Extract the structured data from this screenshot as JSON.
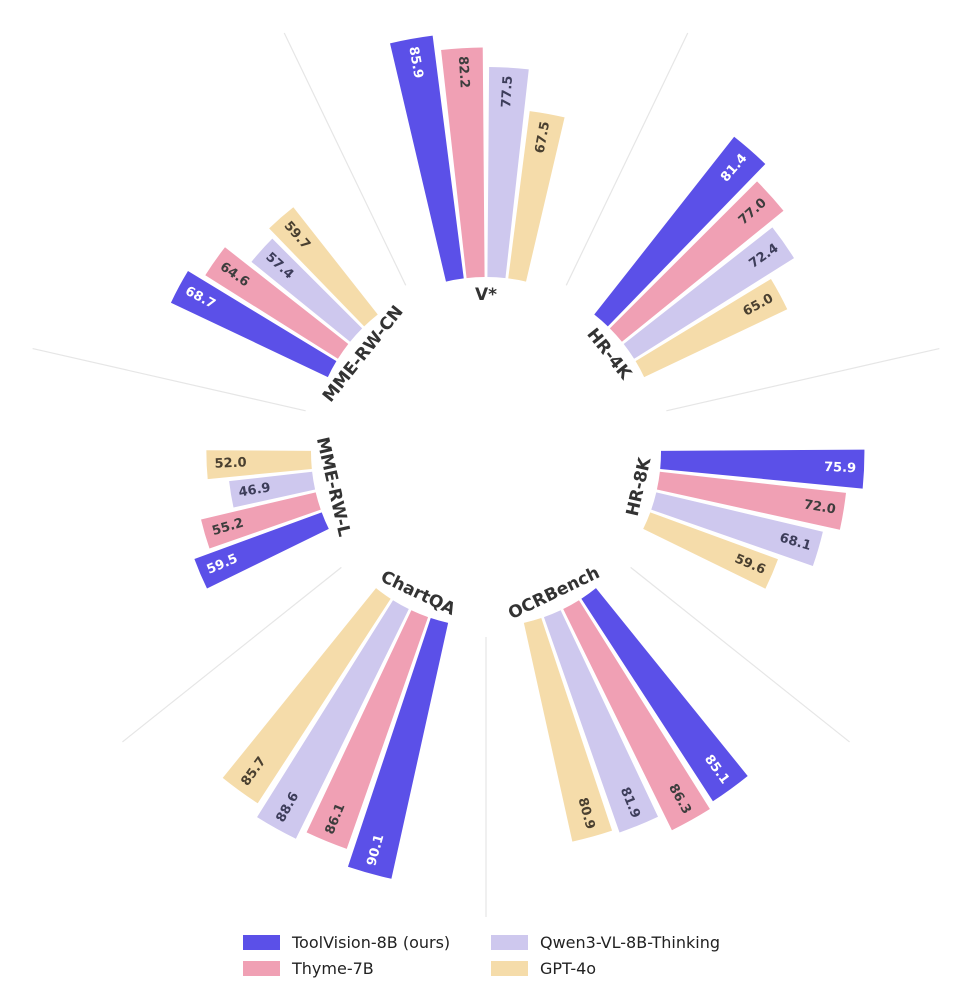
{
  "chart_data": {
    "type": "radial-bar",
    "title": "",
    "benchmarks": [
      "V*",
      "HR-4K",
      "HR-8K",
      "OCRBench",
      "ChartQA",
      "MME-RW-L",
      "MME-RW-CN"
    ],
    "series": [
      {
        "name": "ToolVision-8B (ours)",
        "color": "#5b50e8",
        "value_label_color": "#ffffff",
        "values": [
          85.9,
          81.4,
          75.9,
          85.1,
          90.1,
          59.5,
          68.7
        ]
      },
      {
        "name": "Thyme-7B",
        "color": "#f0a0b4",
        "value_label_color": "#3d3d3d",
        "values": [
          82.2,
          77.0,
          72.0,
          86.3,
          86.1,
          55.2,
          64.6
        ]
      },
      {
        "name": "Qwen3-VL-8B-Thinking",
        "color": "#cec8ee",
        "value_label_color": "#3d3d5a",
        "values": [
          77.5,
          72.4,
          68.1,
          81.9,
          88.6,
          46.9,
          57.4
        ]
      },
      {
        "name": "GPT-4o",
        "color": "#f5dcaa",
        "value_label_color": "#4a4030",
        "values": [
          67.5,
          65.0,
          59.6,
          80.9,
          85.7,
          52.0,
          59.7
        ]
      }
    ],
    "grid": true,
    "legend_position": "bottom"
  }
}
